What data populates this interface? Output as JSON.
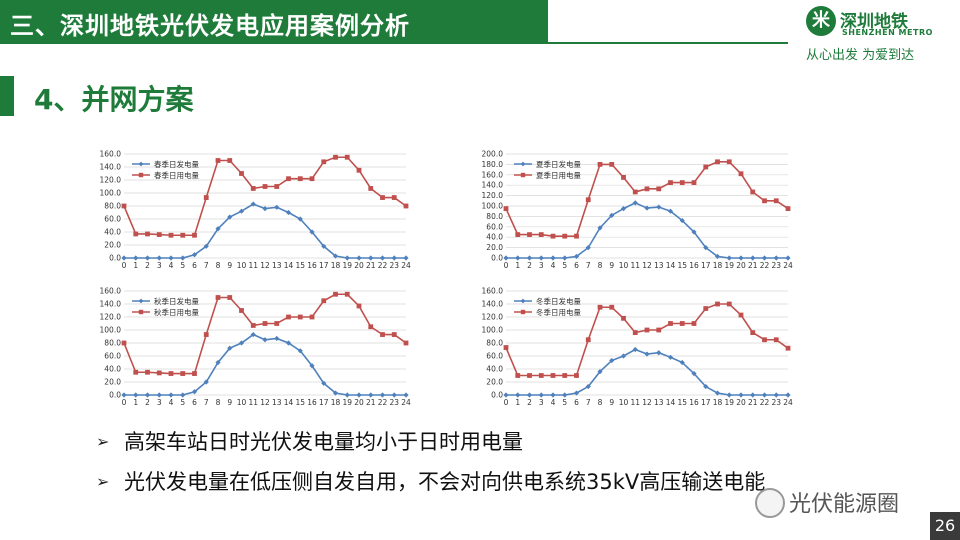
{
  "header": {
    "title": "三、深圳地铁光伏发电应用案例分析",
    "color": "#1e7b3a"
  },
  "logo": {
    "mark": "米",
    "name_cn": "深圳地铁",
    "name_en": "SHENZHEN METRO",
    "slogan": "从心出发 为爱到达"
  },
  "section": {
    "title": "4、并网方案"
  },
  "bullets": [
    {
      "arrow": "➢",
      "text": "高架车站日时光伏发电量均小于日时用电量"
    },
    {
      "arrow": "➢",
      "text": "光伏发电量在低压侧自发自用，不会对向供电系统35kV高压输送电能"
    }
  ],
  "watermark": {
    "text": "光伏能源圈"
  },
  "page_number": "26",
  "series_colors": {
    "generation": "#4f81bd",
    "consumption": "#c0504d"
  },
  "chart_data": [
    {
      "type": "line",
      "x": [
        0,
        1,
        2,
        3,
        4,
        5,
        6,
        7,
        8,
        9,
        10,
        11,
        12,
        13,
        14,
        15,
        16,
        17,
        18,
        19,
        20,
        21,
        22,
        23,
        24
      ],
      "ylim": [
        0,
        160
      ],
      "yticks": [
        "0.0",
        "20.0",
        "40.0",
        "60.0",
        "80.0",
        "100.0",
        "120.0",
        "140.0",
        "160.0"
      ],
      "series": [
        {
          "name": "春季日发电量",
          "values": [
            0,
            0,
            0,
            0,
            0,
            0,
            5,
            18,
            45,
            63,
            72,
            83,
            76,
            78,
            70,
            60,
            40,
            18,
            3,
            0,
            0,
            0,
            0,
            0,
            0
          ]
        },
        {
          "name": "春季日用电量",
          "values": [
            80,
            37,
            37,
            36,
            35,
            35,
            35,
            93,
            150,
            150,
            130,
            107,
            110,
            110,
            122,
            122,
            122,
            148,
            155,
            155,
            135,
            107,
            93,
            93,
            80
          ]
        }
      ]
    },
    {
      "type": "line",
      "x": [
        0,
        1,
        2,
        3,
        4,
        5,
        6,
        7,
        8,
        9,
        10,
        11,
        12,
        13,
        14,
        15,
        16,
        17,
        18,
        19,
        20,
        21,
        22,
        23,
        24
      ],
      "ylim": [
        0,
        200
      ],
      "yticks": [
        "0.0",
        "20.0",
        "40.0",
        "60.0",
        "80.0",
        "100.0",
        "120.0",
        "140.0",
        "160.0",
        "180.0",
        "200.0"
      ],
      "series": [
        {
          "name": "夏季日发电量",
          "values": [
            0,
            0,
            0,
            0,
            0,
            0,
            3,
            20,
            58,
            82,
            95,
            106,
            96,
            98,
            90,
            72,
            50,
            20,
            3,
            0,
            0,
            0,
            0,
            0,
            0
          ]
        },
        {
          "name": "夏季日用电量",
          "values": [
            95,
            45,
            45,
            45,
            42,
            42,
            42,
            112,
            180,
            180,
            155,
            127,
            133,
            133,
            145,
            145,
            145,
            175,
            185,
            185,
            162,
            127,
            110,
            110,
            95
          ]
        }
      ]
    },
    {
      "type": "line",
      "x": [
        0,
        1,
        2,
        3,
        4,
        5,
        6,
        7,
        8,
        9,
        10,
        11,
        12,
        13,
        14,
        15,
        16,
        17,
        18,
        19,
        20,
        21,
        22,
        23,
        24
      ],
      "ylim": [
        0,
        160
      ],
      "yticks": [
        "0.0",
        "20.0",
        "40.0",
        "60.0",
        "80.0",
        "100.0",
        "120.0",
        "140.0",
        "160.0"
      ],
      "series": [
        {
          "name": "秋季日发电量",
          "values": [
            0,
            0,
            0,
            0,
            0,
            0,
            5,
            20,
            50,
            72,
            80,
            93,
            85,
            87,
            80,
            68,
            45,
            18,
            3,
            0,
            0,
            0,
            0,
            0,
            0
          ]
        },
        {
          "name": "秋季日用电量",
          "values": [
            80,
            35,
            35,
            34,
            33,
            33,
            33,
            93,
            150,
            150,
            130,
            107,
            110,
            110,
            120,
            120,
            120,
            145,
            155,
            155,
            137,
            105,
            93,
            93,
            80
          ]
        }
      ]
    },
    {
      "type": "line",
      "x": [
        0,
        1,
        2,
        3,
        4,
        5,
        6,
        7,
        8,
        9,
        10,
        11,
        12,
        13,
        14,
        15,
        16,
        17,
        18,
        19,
        20,
        21,
        22,
        23,
        24
      ],
      "ylim": [
        0,
        160
      ],
      "yticks": [
        "0.0",
        "20.0",
        "40.0",
        "60.0",
        "80.0",
        "100.0",
        "120.0",
        "140.0",
        "160.0"
      ],
      "series": [
        {
          "name": "冬季日发电量",
          "values": [
            0,
            0,
            0,
            0,
            0,
            0,
            3,
            13,
            36,
            53,
            60,
            70,
            63,
            65,
            58,
            50,
            33,
            13,
            3,
            0,
            0,
            0,
            0,
            0,
            0
          ]
        },
        {
          "name": "冬季日用电量",
          "values": [
            73,
            30,
            30,
            30,
            30,
            30,
            30,
            85,
            135,
            135,
            118,
            96,
            100,
            100,
            110,
            110,
            110,
            133,
            140,
            140,
            123,
            96,
            85,
            85,
            72
          ]
        }
      ]
    }
  ]
}
